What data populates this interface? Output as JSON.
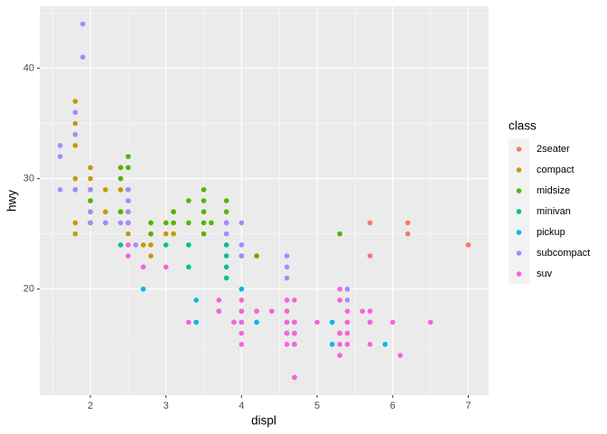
{
  "chart_data": {
    "type": "scatter",
    "x_label": "displ",
    "y_label": "hwy",
    "legend_title": "class",
    "xlim": [
      1.33,
      7.27
    ],
    "ylim": [
      10.4,
      45.6
    ],
    "xticks": [
      2,
      3,
      4,
      5,
      6,
      7
    ],
    "yticks": [
      20,
      30,
      40
    ],
    "grid": true,
    "legend": "right",
    "series": [
      {
        "name": "2seater",
        "color": "#F8766D",
        "x": [
          5.7,
          5.7,
          6.2,
          6.2,
          7.0
        ],
        "y": [
          26,
          23,
          26,
          25,
          24
        ]
      },
      {
        "name": "compact",
        "color": "#C49A00",
        "x": [
          1.8,
          1.8,
          1.8,
          1.8,
          1.8,
          1.8,
          1.8,
          2.0,
          2.0,
          2.0,
          2.0,
          2.0,
          2.0,
          2.2,
          2.2,
          2.4,
          2.4,
          2.4,
          2.5,
          2.5,
          2.5,
          2.5,
          2.7,
          2.8,
          2.8,
          2.8,
          2.8,
          3.0,
          3.1,
          3.1,
          3.0,
          2.4,
          2.2
        ],
        "y": [
          29,
          26,
          25,
          30,
          33,
          35,
          37,
          31,
          30,
          28,
          27,
          29,
          26,
          27,
          29,
          31,
          30,
          27,
          29,
          27,
          26,
          25,
          24,
          26,
          25,
          24,
          23,
          26,
          27,
          25,
          25,
          29,
          26
        ]
      },
      {
        "name": "midsize",
        "color": "#53B400",
        "x": [
          1.8,
          2.0,
          2.0,
          2.0,
          2.4,
          2.4,
          2.4,
          2.5,
          2.5,
          2.5,
          2.5,
          2.5,
          2.5,
          2.8,
          2.8,
          3.0,
          3.1,
          3.1,
          3.3,
          3.3,
          3.5,
          3.5,
          3.5,
          3.5,
          3.5,
          3.6,
          3.8,
          3.8,
          3.8,
          4.2,
          5.3
        ],
        "y": [
          29,
          28,
          29,
          26,
          30,
          31,
          27,
          32,
          31,
          29,
          28,
          27,
          26,
          26,
          25,
          26,
          26,
          27,
          28,
          26,
          29,
          28,
          27,
          26,
          25,
          26,
          28,
          27,
          26,
          23,
          25
        ]
      },
      {
        "name": "minivan",
        "color": "#00C094",
        "x": [
          2.4,
          3.0,
          3.3,
          3.3,
          3.8,
          3.8,
          3.8,
          3.8,
          4.0
        ],
        "y": [
          24,
          24,
          24,
          22,
          24,
          23,
          22,
          21,
          23
        ]
      },
      {
        "name": "pickup",
        "color": "#00B6EB",
        "x": [
          2.7,
          2.7,
          3.4,
          3.4,
          3.7,
          3.9,
          4.0,
          4.0,
          4.0,
          4.2,
          4.6,
          4.6,
          4.7,
          4.7,
          4.7,
          4.7,
          5.2,
          5.2,
          5.4,
          5.4,
          5.7,
          5.9,
          5.3
        ],
        "y": [
          20,
          22,
          19,
          17,
          18,
          17,
          20,
          18,
          17,
          17,
          17,
          16,
          17,
          16,
          15,
          12,
          17,
          15,
          17,
          15,
          17,
          15,
          16
        ]
      },
      {
        "name": "subcompact",
        "color": "#A58AFF",
        "x": [
          1.6,
          1.6,
          1.6,
          1.8,
          1.8,
          1.8,
          1.9,
          1.9,
          2.0,
          2.0,
          2.0,
          2.2,
          2.5,
          2.5,
          2.5,
          2.5,
          2.4,
          2.6,
          3.8,
          3.8,
          4.0,
          4.0,
          4.0,
          4.6,
          4.6,
          4.6,
          5.4,
          5.4
        ],
        "y": [
          32,
          33,
          29,
          36,
          34,
          29,
          44,
          41,
          29,
          27,
          26,
          26,
          29,
          28,
          27,
          26,
          26,
          24,
          26,
          25,
          26,
          24,
          23,
          23,
          22,
          21,
          20,
          19
        ]
      },
      {
        "name": "suv",
        "color": "#FB61D7",
        "x": [
          2.5,
          2.5,
          2.7,
          3.0,
          3.3,
          3.7,
          3.7,
          3.9,
          4.0,
          4.0,
          4.0,
          4.0,
          4.0,
          4.2,
          4.4,
          4.6,
          4.6,
          4.6,
          4.6,
          4.6,
          4.7,
          4.7,
          4.7,
          4.7,
          4.7,
          5.0,
          5.3,
          5.3,
          5.3,
          5.3,
          5.3,
          5.4,
          5.4,
          5.4,
          5.4,
          5.6,
          5.7,
          5.7,
          5.7,
          6.0,
          6.1,
          6.5
        ],
        "y": [
          24,
          23,
          22,
          22,
          17,
          19,
          18,
          17,
          19,
          18,
          17,
          16,
          15,
          18,
          18,
          19,
          18,
          17,
          16,
          15,
          19,
          17,
          16,
          15,
          12,
          17,
          20,
          19,
          16,
          15,
          14,
          18,
          17,
          16,
          15,
          18,
          18,
          17,
          15,
          17,
          14,
          17
        ]
      }
    ]
  }
}
